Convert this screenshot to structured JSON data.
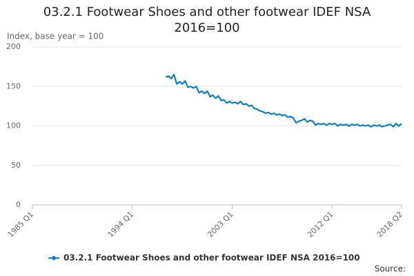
{
  "chart_data": {
    "type": "line",
    "title": "03.2.1 Footwear Shoes and other footwear IDEF NSA 2016=100",
    "y_label": "Index, base year = 100",
    "source": "Source:",
    "x": [
      "1997 Q1",
      "1997 Q2",
      "1997 Q3",
      "1997 Q4",
      "1998 Q1",
      "1998 Q2",
      "1998 Q3",
      "1998 Q4",
      "1999 Q1",
      "1999 Q2",
      "1999 Q3",
      "1999 Q4",
      "2000 Q1",
      "2000 Q2",
      "2000 Q3",
      "2000 Q4",
      "2001 Q1",
      "2001 Q2",
      "2001 Q3",
      "2001 Q4",
      "2002 Q1",
      "2002 Q2",
      "2002 Q3",
      "2002 Q4",
      "2003 Q1",
      "2003 Q2",
      "2003 Q3",
      "2003 Q4",
      "2004 Q1",
      "2004 Q2",
      "2004 Q3",
      "2004 Q4",
      "2005 Q1",
      "2005 Q2",
      "2005 Q3",
      "2005 Q4",
      "2006 Q1",
      "2006 Q2",
      "2006 Q3",
      "2006 Q4",
      "2007 Q1",
      "2007 Q2",
      "2007 Q3",
      "2007 Q4",
      "2008 Q1",
      "2008 Q2",
      "2008 Q3",
      "2008 Q4",
      "2009 Q1",
      "2009 Q2",
      "2009 Q3",
      "2009 Q4",
      "2010 Q1",
      "2010 Q2",
      "2010 Q3",
      "2010 Q4",
      "2011 Q1",
      "2011 Q2",
      "2011 Q3",
      "2011 Q4",
      "2012 Q1",
      "2012 Q2",
      "2012 Q3",
      "2012 Q4",
      "2013 Q1",
      "2013 Q2",
      "2013 Q3",
      "2013 Q4",
      "2014 Q1",
      "2014 Q2",
      "2014 Q3",
      "2014 Q4",
      "2015 Q1",
      "2015 Q2",
      "2015 Q3",
      "2015 Q4",
      "2016 Q1",
      "2016 Q2",
      "2016 Q3",
      "2016 Q4",
      "2017 Q1",
      "2017 Q2",
      "2017 Q3",
      "2017 Q4",
      "2018 Q1",
      "2018 Q2"
    ],
    "series": [
      {
        "name": "03.2.1 Footwear Shoes and other footwear IDEF NSA 2016=100",
        "color": "#0a7ec2",
        "values": [
          162,
          163,
          160,
          165,
          153,
          156,
          153,
          157,
          149,
          150,
          148,
          150,
          142,
          144,
          141,
          144,
          137,
          139,
          135,
          138,
          132,
          133,
          129,
          131,
          129,
          130,
          128,
          131,
          127,
          128,
          125,
          126,
          122,
          121,
          119,
          118,
          116,
          117,
          115,
          116,
          114,
          115,
          113,
          114,
          111,
          112,
          110,
          104,
          106,
          107,
          109,
          105,
          107,
          106,
          101,
          103,
          102,
          103,
          101,
          103,
          102,
          103,
          100,
          102,
          101,
          102,
          100,
          102,
          101,
          102,
          100,
          101,
          100,
          101,
          99,
          101,
          100,
          101,
          99,
          100,
          101,
          102,
          99,
          103,
          100,
          103
        ]
      }
    ],
    "xlim": [
      "1985 Q1",
      "2018 Q2"
    ],
    "xticks": [
      "1985 Q1",
      "1994 Q1",
      "2003 Q1",
      "2012 Q1",
      "2018 Q2"
    ],
    "ylim": [
      0,
      200
    ],
    "yticks": [
      0,
      50,
      100,
      150,
      200
    ],
    "grid": true
  }
}
